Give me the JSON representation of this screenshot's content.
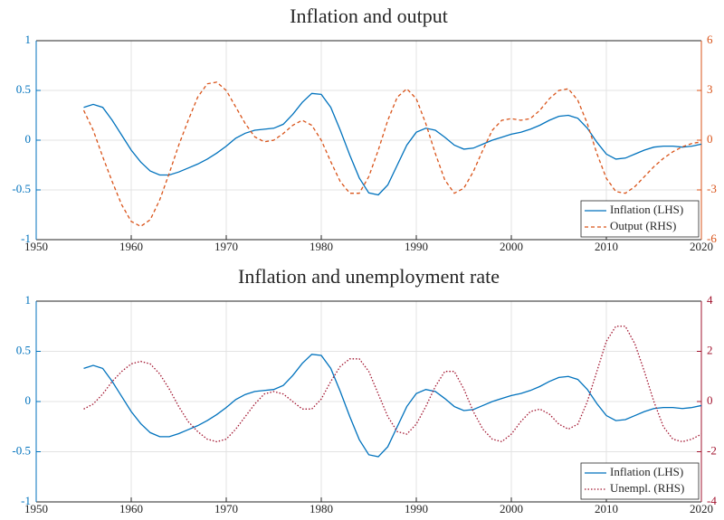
{
  "chart_data": [
    {
      "type": "line",
      "title": "Inflation and output",
      "x": [
        1955,
        1956,
        1957,
        1958,
        1959,
        1960,
        1961,
        1962,
        1963,
        1964,
        1965,
        1966,
        1967,
        1968,
        1969,
        1970,
        1971,
        1972,
        1973,
        1974,
        1975,
        1976,
        1977,
        1978,
        1979,
        1980,
        1981,
        1982,
        1983,
        1984,
        1985,
        1986,
        1987,
        1988,
        1989,
        1990,
        1991,
        1992,
        1993,
        1994,
        1995,
        1996,
        1997,
        1998,
        1999,
        2000,
        2001,
        2002,
        2003,
        2004,
        2005,
        2006,
        2007,
        2008,
        2009,
        2010,
        2011,
        2012,
        2013,
        2014,
        2015,
        2016,
        2017,
        2018,
        2019,
        2020
      ],
      "series": [
        {
          "name": "Inflation (LHS)",
          "color": "#0072bd",
          "dash": "solid",
          "values": [
            0.33,
            0.36,
            0.33,
            0.2,
            0.05,
            -0.1,
            -0.22,
            -0.31,
            -0.35,
            -0.35,
            -0.32,
            -0.28,
            -0.24,
            -0.19,
            -0.13,
            -0.06,
            0.02,
            0.07,
            0.1,
            0.11,
            0.12,
            0.16,
            0.26,
            0.38,
            0.47,
            0.46,
            0.33,
            0.1,
            -0.15,
            -0.38,
            -0.53,
            -0.55,
            -0.45,
            -0.25,
            -0.05,
            0.08,
            0.12,
            0.1,
            0.03,
            -0.05,
            -0.09,
            -0.08,
            -0.04,
            0,
            0.03,
            0.06,
            0.08,
            0.11,
            0.15,
            0.2,
            0.24,
            0.25,
            0.22,
            0.12,
            -0.02,
            -0.14,
            -0.19,
            -0.18,
            -0.14,
            -0.1,
            -0.07,
            -0.06,
            -0.06,
            -0.07,
            -0.06,
            -0.04
          ]
        },
        {
          "name": "Output (RHS)",
          "color": "#d95319",
          "dash": "dashed",
          "axis": "y2",
          "values": [
            1.8,
            0.6,
            -1,
            -2.5,
            -3.9,
            -4.9,
            -5.2,
            -4.8,
            -3.6,
            -2,
            -0.3,
            1.2,
            2.6,
            3.4,
            3.5,
            3,
            2,
            1,
            0.2,
            -0.1,
            0,
            0.4,
            0.9,
            1.2,
            0.9,
            0,
            -1.3,
            -2.5,
            -3.2,
            -3.2,
            -2.2,
            -0.6,
            1.2,
            2.6,
            3.1,
            2.5,
            1,
            -0.8,
            -2.4,
            -3.2,
            -2.9,
            -1.9,
            -0.6,
            0.6,
            1.2,
            1.3,
            1.2,
            1.3,
            1.8,
            2.5,
            3,
            3.1,
            2.4,
            1,
            -0.8,
            -2.3,
            -3.1,
            -3.2,
            -2.8,
            -2.2,
            -1.6,
            -1.1,
            -0.7,
            -0.4,
            -0.2,
            -0.1
          ]
        }
      ],
      "xlim": [
        1950,
        2020
      ],
      "xticks": [
        1950,
        1960,
        1970,
        1980,
        1990,
        2000,
        2010,
        2020
      ],
      "ylim": [
        -1,
        1
      ],
      "yticks": [
        -1,
        -0.5,
        0,
        0.5,
        1
      ],
      "y2lim": [
        -6,
        6
      ],
      "y2ticks": [
        -6,
        -3,
        0,
        3,
        6
      ],
      "grid": true,
      "legend": "southeast"
    },
    {
      "type": "line",
      "title": "Inflation and unemployment rate",
      "x": [
        1955,
        1956,
        1957,
        1958,
        1959,
        1960,
        1961,
        1962,
        1963,
        1964,
        1965,
        1966,
        1967,
        1968,
        1969,
        1970,
        1971,
        1972,
        1973,
        1974,
        1975,
        1976,
        1977,
        1978,
        1979,
        1980,
        1981,
        1982,
        1983,
        1984,
        1985,
        1986,
        1987,
        1988,
        1989,
        1990,
        1991,
        1992,
        1993,
        1994,
        1995,
        1996,
        1997,
        1998,
        1999,
        2000,
        2001,
        2002,
        2003,
        2004,
        2005,
        2006,
        2007,
        2008,
        2009,
        2010,
        2011,
        2012,
        2013,
        2014,
        2015,
        2016,
        2017,
        2018,
        2019,
        2020
      ],
      "series": [
        {
          "name": "Inflation (LHS)",
          "color": "#0072bd",
          "dash": "solid",
          "values": [
            0.33,
            0.36,
            0.33,
            0.2,
            0.05,
            -0.1,
            -0.22,
            -0.31,
            -0.35,
            -0.35,
            -0.32,
            -0.28,
            -0.24,
            -0.19,
            -0.13,
            -0.06,
            0.02,
            0.07,
            0.1,
            0.11,
            0.12,
            0.16,
            0.26,
            0.38,
            0.47,
            0.46,
            0.33,
            0.1,
            -0.15,
            -0.38,
            -0.53,
            -0.55,
            -0.45,
            -0.25,
            -0.05,
            0.08,
            0.12,
            0.1,
            0.03,
            -0.05,
            -0.09,
            -0.08,
            -0.04,
            0,
            0.03,
            0.06,
            0.08,
            0.11,
            0.15,
            0.2,
            0.24,
            0.25,
            0.22,
            0.12,
            -0.02,
            -0.14,
            -0.19,
            -0.18,
            -0.14,
            -0.1,
            -0.07,
            -0.06,
            -0.06,
            -0.07,
            -0.06,
            -0.04
          ]
        },
        {
          "name": "Unempl. (RHS)",
          "color": "#a2142f",
          "dash": "dotted",
          "axis": "y2",
          "values": [
            -0.3,
            -0.1,
            0.3,
            0.8,
            1.2,
            1.5,
            1.6,
            1.5,
            1.1,
            0.5,
            -0.2,
            -0.8,
            -1.2,
            -1.5,
            -1.6,
            -1.5,
            -1.1,
            -0.6,
            -0.1,
            0.3,
            0.4,
            0.3,
            0,
            -0.3,
            -0.3,
            0.1,
            0.8,
            1.4,
            1.7,
            1.7,
            1.2,
            0.3,
            -0.6,
            -1.2,
            -1.3,
            -0.9,
            -0.2,
            0.6,
            1.2,
            1.2,
            0.5,
            -0.4,
            -1.1,
            -1.5,
            -1.6,
            -1.3,
            -0.8,
            -0.4,
            -0.3,
            -0.5,
            -0.9,
            -1.1,
            -0.9,
            0,
            1.2,
            2.4,
            3,
            3,
            2.3,
            1.2,
            0,
            -1,
            -1.5,
            -1.6,
            -1.5,
            -1.3
          ]
        }
      ],
      "xlim": [
        1950,
        2020
      ],
      "xticks": [
        1950,
        1960,
        1970,
        1980,
        1990,
        2000,
        2010,
        2020
      ],
      "ylim": [
        -1,
        1
      ],
      "yticks": [
        -1,
        -0.5,
        0,
        0.5,
        1
      ],
      "y2lim": [
        -4,
        4
      ],
      "y2ticks": [
        -4,
        -2,
        0,
        2,
        4
      ],
      "grid": true,
      "legend": "southeast"
    }
  ]
}
